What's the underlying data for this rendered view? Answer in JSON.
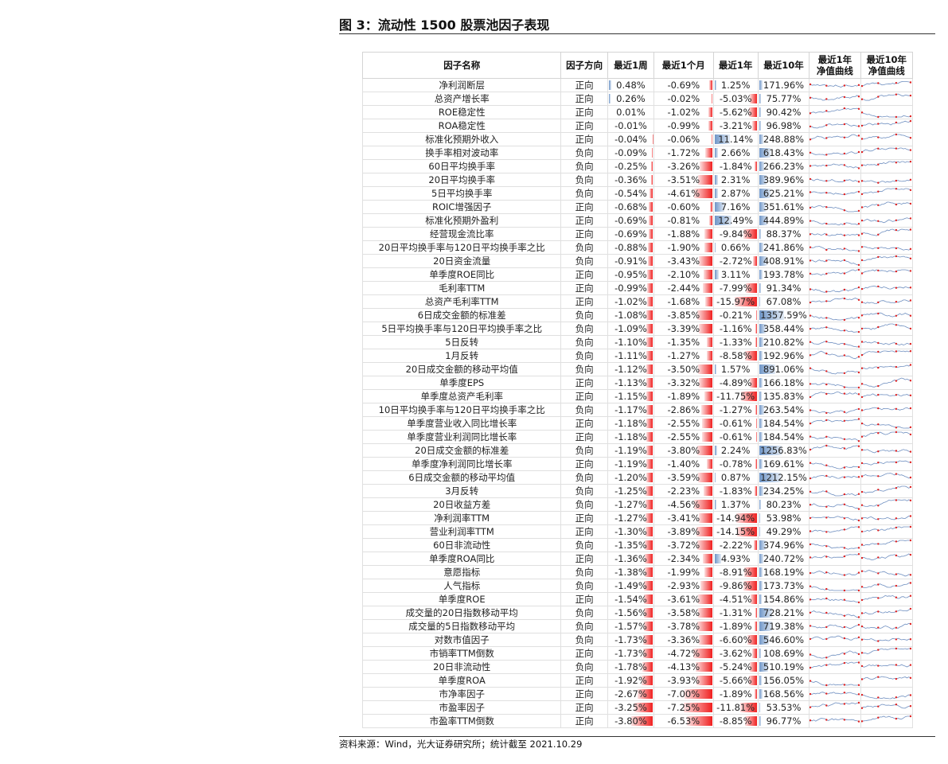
{
  "figure_title": "图 3：流动性 1500 股票池因子表现",
  "source_note": "资料来源：Wind，光大证券研究所；统计截至 2021.10.29",
  "headers": {
    "name": "因子名称",
    "direction": "因子方向",
    "week": "最近1周",
    "month": "最近1个月",
    "year": "最近1年",
    "decade": "最近10年",
    "spark1_l1": "最近1年",
    "spark1_l2": "净值曲线",
    "spark10_l1": "最近10年",
    "spark10_l2": "净值曲线"
  },
  "colors": {
    "negative_bar": "#f02020",
    "positive_bar": "#6f96c8",
    "spark_line": "#6f8fc0",
    "spark_marker": "#e02020"
  },
  "rows": [
    {
      "name": "净利润断层",
      "dir": "正向",
      "w": 0.48,
      "m": -0.69,
      "y": 1.25,
      "d": 171.96
    },
    {
      "name": "总资产增长率",
      "dir": "正向",
      "w": 0.26,
      "m": -0.02,
      "y": -5.03,
      "d": 75.77
    },
    {
      "name": "ROE稳定性",
      "dir": "正向",
      "w": 0.01,
      "m": -1.02,
      "y": -5.62,
      "d": 90.42
    },
    {
      "name": "ROA稳定性",
      "dir": "正向",
      "w": -0.01,
      "m": -0.99,
      "y": -3.21,
      "d": 96.98
    },
    {
      "name": "标准化预期外收入",
      "dir": "正向",
      "w": -0.04,
      "m": -0.06,
      "y": 11.14,
      "d": 248.88
    },
    {
      "name": "换手率相对波动率",
      "dir": "负向",
      "w": -0.09,
      "m": -1.72,
      "y": 2.66,
      "d": 618.43
    },
    {
      "name": "60日平均换手率",
      "dir": "负向",
      "w": -0.25,
      "m": -3.26,
      "y": -1.84,
      "d": 266.23
    },
    {
      "name": "20日平均换手率",
      "dir": "负向",
      "w": -0.36,
      "m": -3.51,
      "y": 2.31,
      "d": 389.96
    },
    {
      "name": "5日平均换手率",
      "dir": "负向",
      "w": -0.54,
      "m": -4.61,
      "y": 2.87,
      "d": 625.21
    },
    {
      "name": "ROIC增强因子",
      "dir": "正向",
      "w": -0.68,
      "m": -0.6,
      "y": 7.16,
      "d": 351.61
    },
    {
      "name": "标准化预期外盈利",
      "dir": "正向",
      "w": -0.69,
      "m": -0.81,
      "y": 12.49,
      "d": 444.89
    },
    {
      "name": "经营现金流比率",
      "dir": "正向",
      "w": -0.69,
      "m": -1.88,
      "y": -9.84,
      "d": 88.37
    },
    {
      "name": "20日平均换手率与120日平均换手率之比",
      "dir": "负向",
      "w": -0.88,
      "m": -1.9,
      "y": 0.66,
      "d": 241.86
    },
    {
      "name": "20日资金流量",
      "dir": "负向",
      "w": -0.91,
      "m": -3.43,
      "y": -2.72,
      "d": 408.91
    },
    {
      "name": "单季度ROE同比",
      "dir": "正向",
      "w": -0.95,
      "m": -2.1,
      "y": 3.11,
      "d": 193.78
    },
    {
      "name": "毛利率TTM",
      "dir": "正向",
      "w": -0.99,
      "m": -2.44,
      "y": -7.99,
      "d": 91.34
    },
    {
      "name": "总资产毛利率TTM",
      "dir": "正向",
      "w": -1.02,
      "m": -1.68,
      "y": -15.97,
      "d": 67.08
    },
    {
      "name": "6日成交金额的标准差",
      "dir": "负向",
      "w": -1.08,
      "m": -3.85,
      "y": -0.21,
      "d": 1357.59
    },
    {
      "name": "5日平均换手率与120日平均换手率之比",
      "dir": "负向",
      "w": -1.09,
      "m": -3.39,
      "y": -1.16,
      "d": 358.44
    },
    {
      "name": "5日反转",
      "dir": "负向",
      "w": -1.1,
      "m": -1.35,
      "y": -1.33,
      "d": 210.82
    },
    {
      "name": "1月反转",
      "dir": "负向",
      "w": -1.11,
      "m": -1.27,
      "y": -8.58,
      "d": 192.96
    },
    {
      "name": "20日成交金额的移动平均值",
      "dir": "负向",
      "w": -1.12,
      "m": -3.5,
      "y": 1.57,
      "d": 891.06
    },
    {
      "name": "单季度EPS",
      "dir": "正向",
      "w": -1.13,
      "m": -3.32,
      "y": -4.89,
      "d": 166.18
    },
    {
      "name": "单季度总资产毛利率",
      "dir": "正向",
      "w": -1.15,
      "m": -1.89,
      "y": -11.75,
      "d": 135.83
    },
    {
      "name": "10日平均换手率与120日平均换手率之比",
      "dir": "负向",
      "w": -1.17,
      "m": -2.86,
      "y": -1.27,
      "d": 263.54
    },
    {
      "name": "单季度营业收入同比增长率",
      "dir": "正向",
      "w": -1.18,
      "m": -2.55,
      "y": -0.61,
      "d": 184.54
    },
    {
      "name": "单季度营业利润同比增长率",
      "dir": "正向",
      "w": -1.18,
      "m": -2.55,
      "y": -0.61,
      "d": 184.54
    },
    {
      "name": "20日成交金额的标准差",
      "dir": "负向",
      "w": -1.19,
      "m": -3.8,
      "y": 2.24,
      "d": 1256.83
    },
    {
      "name": "单季度净利润同比增长率",
      "dir": "正向",
      "w": -1.19,
      "m": -1.4,
      "y": -0.78,
      "d": 169.61
    },
    {
      "name": "6日成交金额的移动平均值",
      "dir": "负向",
      "w": -1.2,
      "m": -3.59,
      "y": 0.87,
      "d": 1212.15
    },
    {
      "name": "3月反转",
      "dir": "负向",
      "w": -1.25,
      "m": -2.23,
      "y": -1.83,
      "d": 234.25
    },
    {
      "name": "20日收益方差",
      "dir": "负向",
      "w": -1.27,
      "m": -4.56,
      "y": 1.37,
      "d": 80.23
    },
    {
      "name": "净利润率TTM",
      "dir": "正向",
      "w": -1.27,
      "m": -3.41,
      "y": -14.94,
      "d": 53.98
    },
    {
      "name": "营业利润率TTM",
      "dir": "正向",
      "w": -1.3,
      "m": -3.89,
      "y": -14.15,
      "d": 49.29
    },
    {
      "name": "60日非流动性",
      "dir": "负向",
      "w": -1.35,
      "m": -3.72,
      "y": -2.22,
      "d": 374.96
    },
    {
      "name": "单季度ROA同比",
      "dir": "正向",
      "w": -1.36,
      "m": -2.34,
      "y": 4.93,
      "d": 240.72
    },
    {
      "name": "意愿指标",
      "dir": "负向",
      "w": -1.38,
      "m": -1.99,
      "y": -8.91,
      "d": 168.19
    },
    {
      "name": "人气指标",
      "dir": "负向",
      "w": -1.49,
      "m": -2.93,
      "y": -9.86,
      "d": 173.73
    },
    {
      "name": "单季度ROE",
      "dir": "正向",
      "w": -1.54,
      "m": -3.61,
      "y": -4.51,
      "d": 154.86
    },
    {
      "name": "成交量的20日指数移动平均",
      "dir": "负向",
      "w": -1.56,
      "m": -3.58,
      "y": -1.31,
      "d": 728.21
    },
    {
      "name": "成交量的5日指数移动平均",
      "dir": "负向",
      "w": -1.57,
      "m": -3.78,
      "y": -1.89,
      "d": 719.38
    },
    {
      "name": "对数市值因子",
      "dir": "负向",
      "w": -1.73,
      "m": -3.36,
      "y": -6.6,
      "d": 546.6
    },
    {
      "name": "市销率TTM倒数",
      "dir": "正向",
      "w": -1.73,
      "m": -4.72,
      "y": -3.62,
      "d": 108.69
    },
    {
      "name": "20日非流动性",
      "dir": "负向",
      "w": -1.78,
      "m": -4.13,
      "y": -5.24,
      "d": 510.19
    },
    {
      "name": "单季度ROA",
      "dir": "正向",
      "w": -1.92,
      "m": -3.93,
      "y": -5.66,
      "d": 156.05
    },
    {
      "name": "市净率因子",
      "dir": "正向",
      "w": -2.67,
      "m": -7.0,
      "y": -1.89,
      "d": 168.56
    },
    {
      "name": "市盈率因子",
      "dir": "正向",
      "w": -3.25,
      "m": -7.25,
      "y": -11.81,
      "d": 53.53
    },
    {
      "name": "市盈率TTM倒数",
      "dir": "正向",
      "w": -3.8,
      "m": -6.53,
      "y": -8.85,
      "d": 96.77
    }
  ]
}
